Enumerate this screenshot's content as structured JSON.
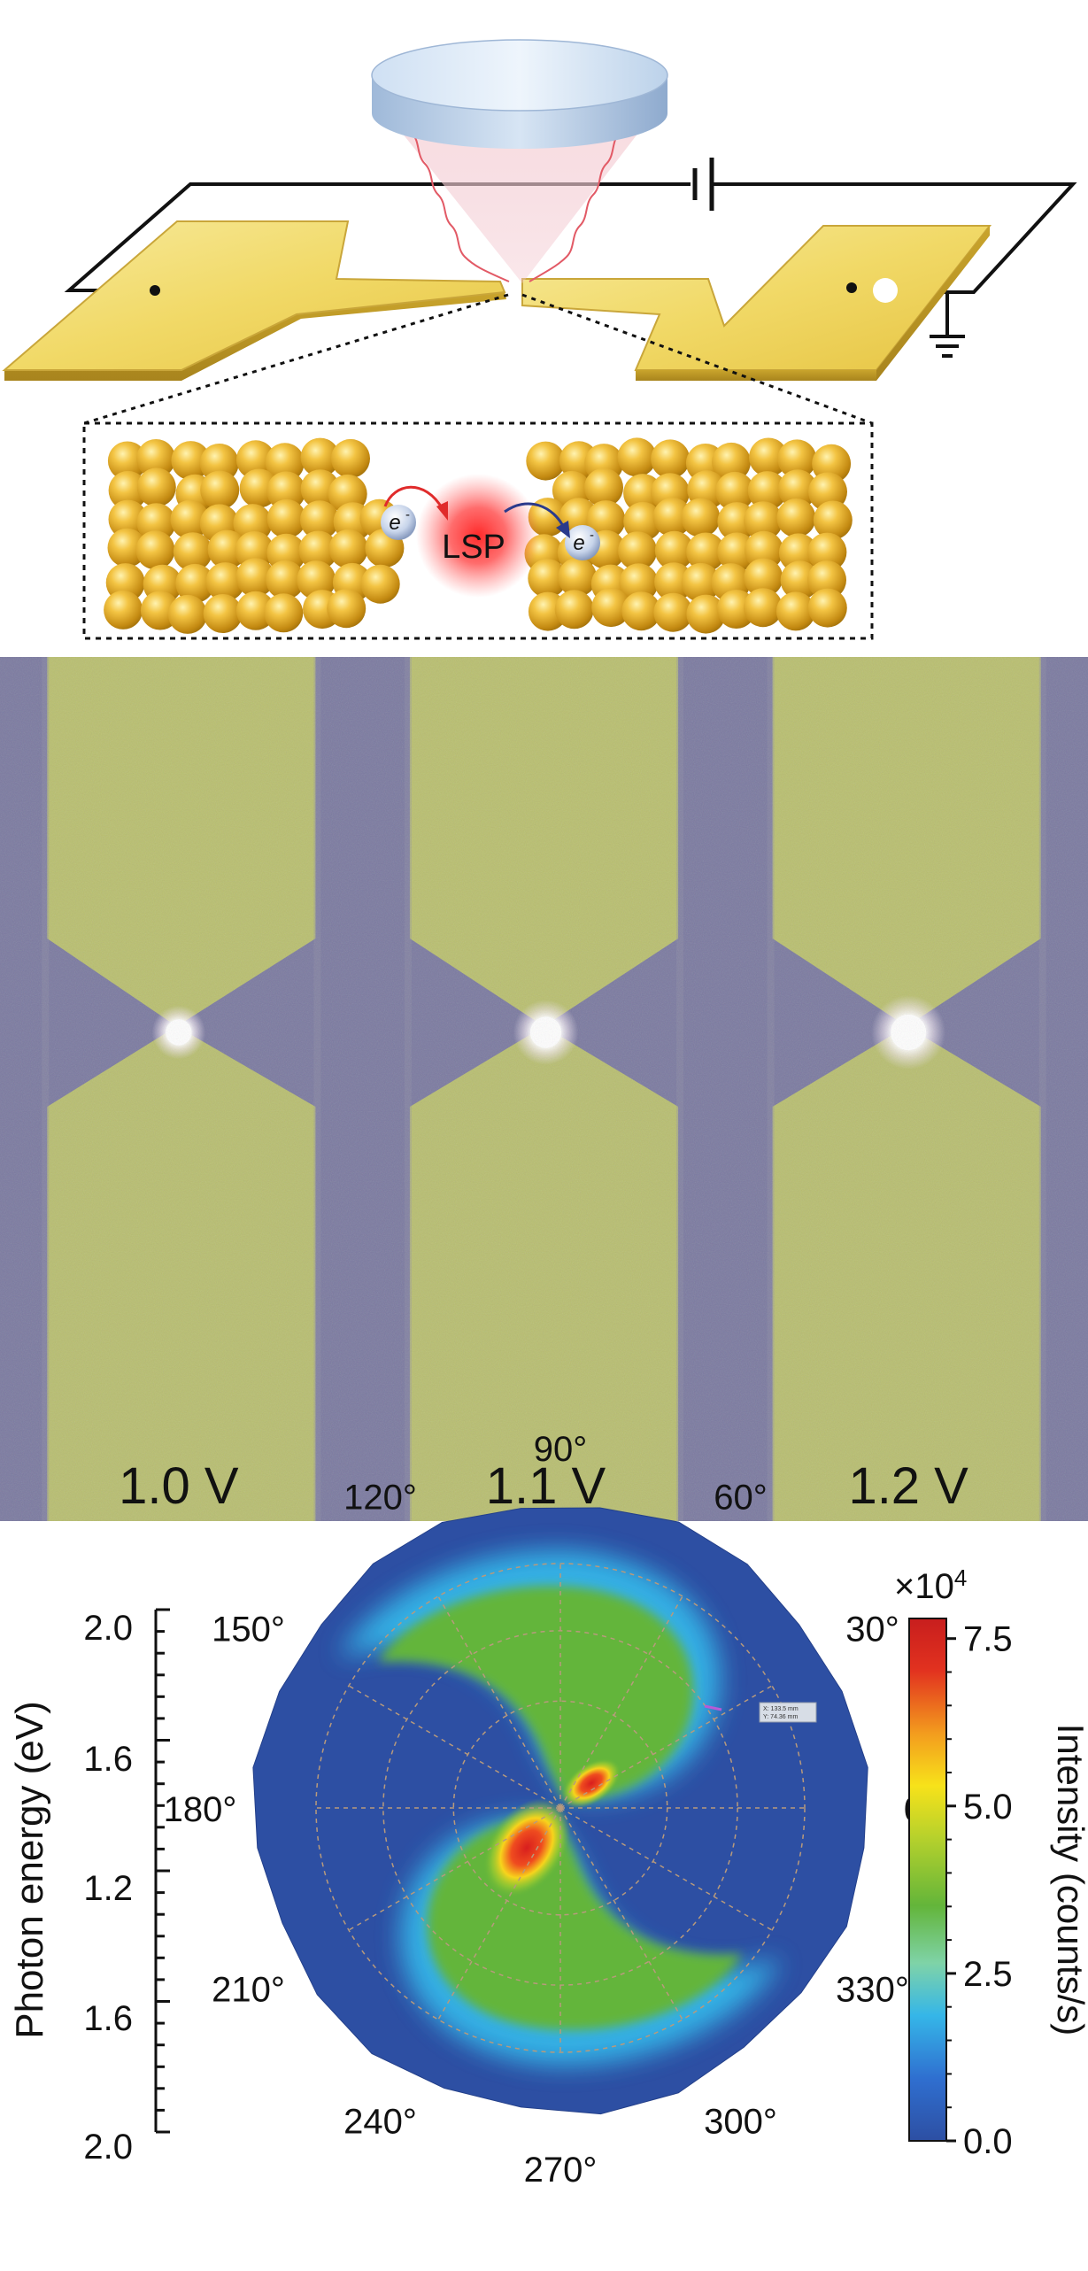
{
  "schematic": {
    "lsp_label": "LSP",
    "electron_label": "e",
    "electron_sup": "-"
  },
  "micrographs": {
    "panels": [
      {
        "voltage_label": "1.0 V",
        "spot_level": 0.55
      },
      {
        "voltage_label": "1.1 V",
        "spot_level": 0.8
      },
      {
        "voltage_label": "1.2 V",
        "spot_level": 1.0
      }
    ]
  },
  "polar_plot": {
    "angle_labels": [
      "90°",
      "60°",
      "30°",
      "0°",
      "330°",
      "300°",
      "270°",
      "240°",
      "210°",
      "180°",
      "150°",
      "120°"
    ],
    "radial_axis_label": "Photon energy (eV)",
    "radial_ticks": [
      "2.0",
      "1.6",
      "1.2",
      "1.6",
      "2.0"
    ],
    "colorbar": {
      "title": "Intensity (counts/s)",
      "multiplier": "×10",
      "multiplier_exp": "4",
      "ticks": [
        "7.5",
        "5.0",
        "2.5",
        "0.0"
      ],
      "tick_values": [
        7.5,
        5.0,
        2.5,
        0.0
      ],
      "range": [
        0,
        7.8
      ],
      "colors": [
        "#2d4fa3",
        "#2f6fd0",
        "#35b6e8",
        "#7fd3a8",
        "#63b53a",
        "#c8d62a",
        "#f7e21a",
        "#f39c1e",
        "#e2321f",
        "#c81e1e"
      ]
    },
    "inset_readout": [
      "X: 133.5 mm",
      "Y: 74.36 mm"
    ]
  }
}
